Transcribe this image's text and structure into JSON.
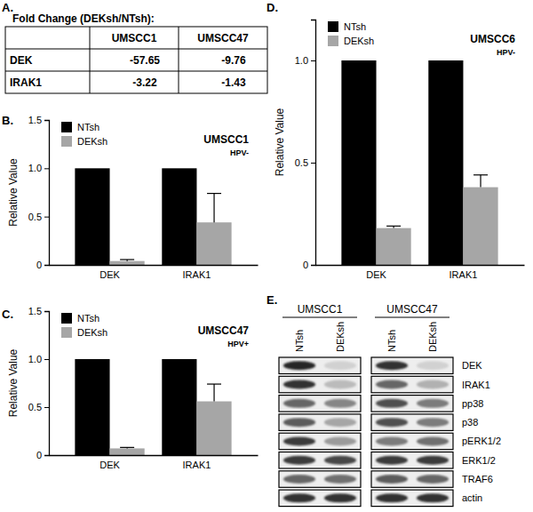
{
  "panel_labels": [
    "A.",
    "B.",
    "C.",
    "D.",
    "E."
  ],
  "table": {
    "title": "Fold Change (DEKsh/NTsh):",
    "columns": [
      "UMSCC1",
      "UMSCC47"
    ],
    "rows": [
      {
        "label": "DEK",
        "values": [
          -57.65,
          -9.76
        ]
      },
      {
        "label": "IRAK1",
        "values": [
          -3.22,
          -1.43
        ]
      }
    ]
  },
  "chart_data": [
    {
      "type": "bar",
      "title": "UMSCC1",
      "subtitle": "HPV-",
      "ylabel": "Relative Value",
      "categories": [
        "DEK",
        "IRAK1"
      ],
      "series": [
        {
          "name": "NTsh",
          "color": "#000000",
          "values": [
            1,
            1
          ]
        },
        {
          "name": "DEKsh",
          "color": "#a6a6a6",
          "values": [
            0.04,
            0.44
          ],
          "errors": [
            0.015,
            0.3
          ]
        }
      ],
      "ylim": [
        0,
        1.5
      ],
      "yticks": [
        0,
        0.5,
        {
          "value": 1,
          "label": "1.0"
        },
        1.5
      ],
      "legend": "upper left"
    },
    {
      "type": "bar",
      "title": "UMSCC47",
      "subtitle": "HPV+",
      "ylabel": "Relative Value",
      "categories": [
        "DEK",
        "IRAK1"
      ],
      "series": [
        {
          "name": "NTsh",
          "color": "#000000",
          "values": [
            1,
            1
          ]
        },
        {
          "name": "DEKsh",
          "color": "#a6a6a6",
          "values": [
            0.07,
            0.56
          ],
          "errors": [
            0.01,
            0.18
          ]
        }
      ],
      "ylim": [
        0,
        1.5
      ],
      "yticks": [
        0,
        0.5,
        {
          "value": 1,
          "label": "1.0"
        },
        1.5
      ],
      "legend": "upper left"
    },
    {
      "type": "bar",
      "title": "UMSCC6",
      "subtitle": "HPV-",
      "ylabel": "Relative Value",
      "categories": [
        "DEK",
        "IRAK1"
      ],
      "series": [
        {
          "name": "NTsh",
          "color": "#000000",
          "values": [
            1,
            1
          ]
        },
        {
          "name": "DEKsh",
          "color": "#a6a6a6",
          "values": [
            0.18,
            0.38
          ],
          "errors": [
            0.01,
            0.06
          ]
        }
      ],
      "ylim": [
        0,
        1.2
      ],
      "yticks": [
        0,
        0.5,
        {
          "value": 1,
          "label": "1.0"
        }
      ],
      "legend": "upper left"
    }
  ],
  "blot": {
    "proteins": [
      "DEK",
      "IRAK1",
      "pp38",
      "p38",
      "pERK1/2",
      "ERK1/2",
      "TRAF6",
      "actin"
    ],
    "cell_lines": [
      {
        "name": "UMSCC1",
        "lanes": [
          "NTsh",
          "DEKsh"
        ],
        "bands": [
          [
            0.9,
            0.1
          ],
          [
            0.85,
            0.2
          ],
          [
            0.6,
            0.45
          ],
          [
            0.65,
            0.3
          ],
          [
            0.8,
            0.35
          ],
          [
            0.8,
            0.75
          ],
          [
            0.6,
            0.55
          ],
          [
            0.85,
            0.85
          ]
        ]
      },
      {
        "name": "UMSCC47",
        "lanes": [
          "NTsh",
          "DEKsh"
        ],
        "bands": [
          [
            0.85,
            0.1
          ],
          [
            0.6,
            0.25
          ],
          [
            0.7,
            0.5
          ],
          [
            0.7,
            0.5
          ],
          [
            0.5,
            0.55
          ],
          [
            0.8,
            0.8
          ],
          [
            0.65,
            0.6
          ],
          [
            0.85,
            0.85
          ]
        ]
      }
    ]
  }
}
